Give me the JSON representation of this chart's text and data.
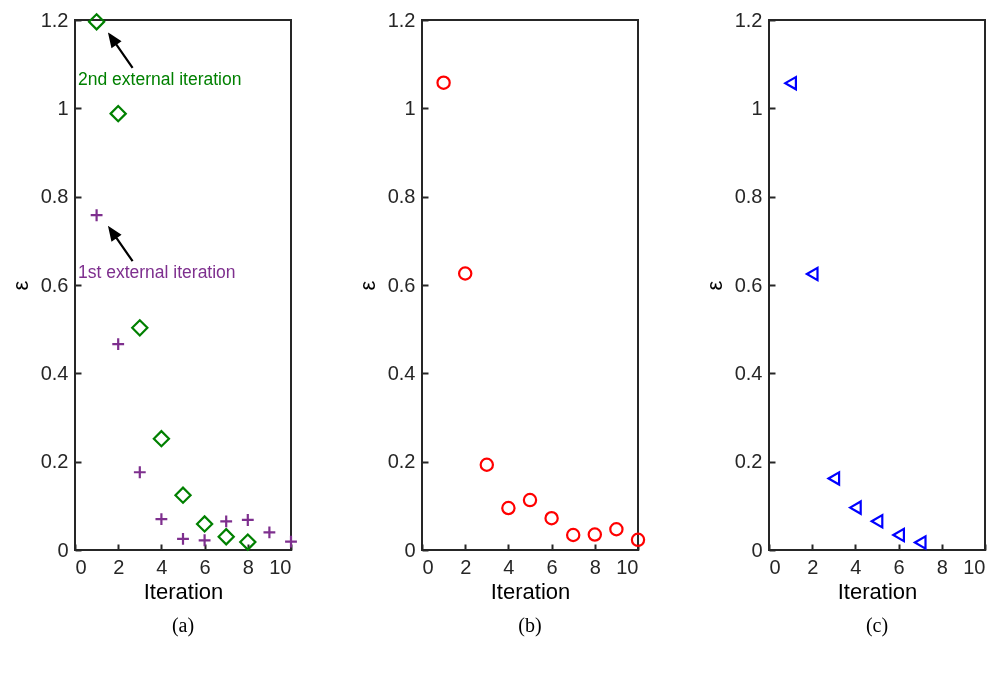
{
  "chart_data": [
    {
      "type": "scatter",
      "title": "(a)",
      "xlabel": "Iteration",
      "ylabel": "ε",
      "xlim": [
        0,
        10
      ],
      "xticks": [
        0,
        2,
        4,
        6,
        8,
        10
      ],
      "ylim": [
        0,
        1.2
      ],
      "yticks": [
        0,
        0.2,
        0.4,
        0.6,
        0.8,
        1,
        1.2
      ],
      "x": [
        1,
        2,
        3,
        4,
        5,
        6,
        7,
        8,
        9,
        10
      ],
      "series": [
        {
          "color": "#7e2f8e",
          "marker": "cross",
          "values": [
            0.758,
            0.466,
            0.176,
            0.07,
            0.025,
            0.022,
            0.065,
            0.068,
            0.04,
            0.019
          ]
        },
        {
          "color": "#008000",
          "marker": "diamond",
          "values": [
            1.196,
            0.988,
            0.503,
            0.252,
            0.124,
            0.059,
            0.03,
            0.018,
            null,
            null
          ]
        }
      ],
      "annotations": [
        {
          "text": "2nd external iteration",
          "x": 1,
          "y": 1.196
        },
        {
          "text": "1st external iteration",
          "x": 1,
          "y": 0.758
        }
      ]
    },
    {
      "type": "scatter",
      "title": "(b)",
      "xlabel": "Iteration",
      "ylabel": "ε",
      "xlim": [
        0,
        10
      ],
      "xticks": [
        0,
        2,
        4,
        6,
        8,
        10
      ],
      "ylim": [
        0,
        1.2
      ],
      "yticks": [
        0,
        0.2,
        0.4,
        0.6,
        0.8,
        1,
        1.2
      ],
      "x": [
        1,
        2,
        3,
        4,
        5,
        6,
        7,
        8,
        9,
        10
      ],
      "series": [
        {
          "color": "#ff0000",
          "marker": "circle",
          "values": [
            1.058,
            0.626,
            0.193,
            0.095,
            0.113,
            0.072,
            0.034,
            0.035,
            0.047,
            0.023
          ]
        }
      ]
    },
    {
      "type": "scatter",
      "title": "(c)",
      "xlabel": "Iteration",
      "ylabel": "ε",
      "xlim": [
        0,
        10
      ],
      "xticks": [
        0,
        2,
        4,
        6,
        8,
        10
      ],
      "ylim": [
        0,
        1.2
      ],
      "yticks": [
        0,
        0.2,
        0.4,
        0.6,
        0.8,
        1,
        1.2
      ],
      "x": [
        1,
        2,
        3,
        4,
        5,
        6,
        7
      ],
      "series": [
        {
          "color": "#0000ff",
          "marker": "triangle",
          "values": [
            1.057,
            0.625,
            0.162,
            0.096,
            0.065,
            0.034,
            0.017
          ]
        }
      ]
    }
  ]
}
